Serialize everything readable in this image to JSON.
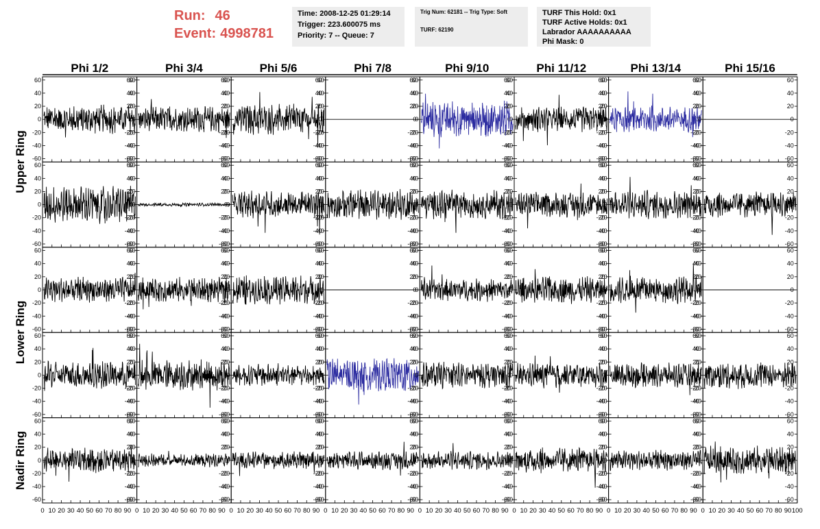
{
  "header": {
    "run_label": "Run:",
    "run_value": "46",
    "event_label": "Event:",
    "event_value": "4998781",
    "time": "Time: 2008-12-25 01:29:14",
    "trigger": "Trigger: 223.600075 ms",
    "priority": "Priority: 7 -- Queue: 7",
    "trig_num": "Trig Num: 62181 -- Trig Type: Soft",
    "turf_id": "TURF: 62190",
    "turf_this_hold": "TURF This Hold: 0x1",
    "turf_active_holds": "TURF Active Holds: 0x1",
    "labrador": "Labrador AAAAAAAAAA",
    "phi_mask": "Phi Mask: 0"
  },
  "columns": [
    "Phi 1/2",
    "Phi 3/4",
    "Phi 5/6",
    "Phi 7/8",
    "Phi 9/10",
    "Phi 11/12",
    "Phi 13/14",
    "Phi 15/16"
  ],
  "rings": [
    "Upper Ring",
    "Lower Ring",
    "Nadir Ring"
  ],
  "colors": {
    "trace": "#000000",
    "triggered_trace": "#2b2ba0",
    "header_red": "#d9534f",
    "info_bg": "#ededed"
  },
  "axis": {
    "y_ticks": [
      60,
      40,
      20,
      0,
      -20,
      -40,
      -60
    ],
    "ylim": [
      -65,
      65
    ],
    "x_ticks": [
      0,
      10,
      20,
      30,
      40,
      50,
      60,
      70,
      80,
      90,
      100
    ],
    "xlim": [
      0,
      100
    ]
  },
  "chart_data": {
    "type": "line",
    "rows": 5,
    "cols": 8,
    "panels": [
      [
        {
          "amp": 17,
          "c": "k"
        },
        {
          "amp": 15,
          "c": "k"
        },
        {
          "amp": 18,
          "c": "k"
        },
        {
          "amp": 0,
          "c": "k"
        },
        {
          "amp": 22,
          "c": "b"
        },
        {
          "amp": 15,
          "c": "k"
        },
        {
          "amp": 15,
          "c": "b"
        },
        {
          "amp": 0,
          "c": "k"
        }
      ],
      [
        {
          "amp": 22,
          "c": "k"
        },
        {
          "amp": 2,
          "c": "k"
        },
        {
          "amp": 16,
          "c": "k"
        },
        {
          "amp": 18,
          "c": "k"
        },
        {
          "amp": 17,
          "c": "k"
        },
        {
          "amp": 15,
          "c": "k"
        },
        {
          "amp": 17,
          "c": "k"
        },
        {
          "amp": 16,
          "c": "k"
        }
      ],
      [
        {
          "amp": 15,
          "c": "k"
        },
        {
          "amp": 15,
          "c": "k"
        },
        {
          "amp": 17,
          "c": "k"
        },
        {
          "amp": 0,
          "c": "k"
        },
        {
          "amp": 13,
          "c": "k"
        },
        {
          "amp": 16,
          "c": "k"
        },
        {
          "amp": 16,
          "c": "k"
        },
        {
          "amp": 0,
          "c": "k"
        }
      ],
      [
        {
          "amp": 16,
          "c": "k"
        },
        {
          "amp": 18,
          "c": "k"
        },
        {
          "amp": 13,
          "c": "k"
        },
        {
          "amp": 20,
          "c": "b"
        },
        {
          "amp": 16,
          "c": "k"
        },
        {
          "amp": 15,
          "c": "k"
        },
        {
          "amp": 15,
          "c": "k"
        },
        {
          "amp": 16,
          "c": "k"
        }
      ],
      [
        {
          "amp": 15,
          "c": "k"
        },
        {
          "amp": 8,
          "c": "k"
        },
        {
          "amp": 10,
          "c": "k"
        },
        {
          "amp": 11,
          "c": "k"
        },
        {
          "amp": 11,
          "c": "k"
        },
        {
          "amp": 15,
          "c": "k"
        },
        {
          "amp": 12,
          "c": "k"
        },
        {
          "amp": 17,
          "c": "k"
        }
      ]
    ]
  }
}
